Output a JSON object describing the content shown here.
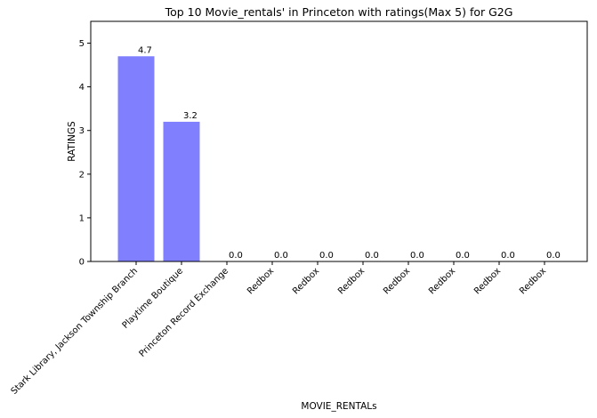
{
  "chart_data": {
    "type": "bar",
    "title": "Top 10 Movie_rentals' in Princeton with ratings(Max 5) for G2G",
    "xlabel": "MOVIE_RENTALs",
    "ylabel": "RATINGS",
    "categories": [
      "Stark Library, Jackson Township Branch",
      "Playtime Boutique",
      "Princeton Record Exchange",
      "Redbox",
      "Redbox",
      "Redbox",
      "Redbox",
      "Redbox",
      "Redbox",
      "Redbox"
    ],
    "values": [
      4.7,
      3.2,
      0.0,
      0.0,
      0.0,
      0.0,
      0.0,
      0.0,
      0.0,
      0.0
    ],
    "value_labels": [
      "4.7",
      "3.2",
      "0.0",
      "0.0",
      "0.0",
      "0.0",
      "0.0",
      "0.0",
      "0.0",
      "0.0"
    ],
    "ylim": [
      0,
      5.5
    ],
    "yticks": [
      0,
      1,
      2,
      3,
      4,
      5
    ],
    "grid": false,
    "bar_color": "#8080ff"
  }
}
